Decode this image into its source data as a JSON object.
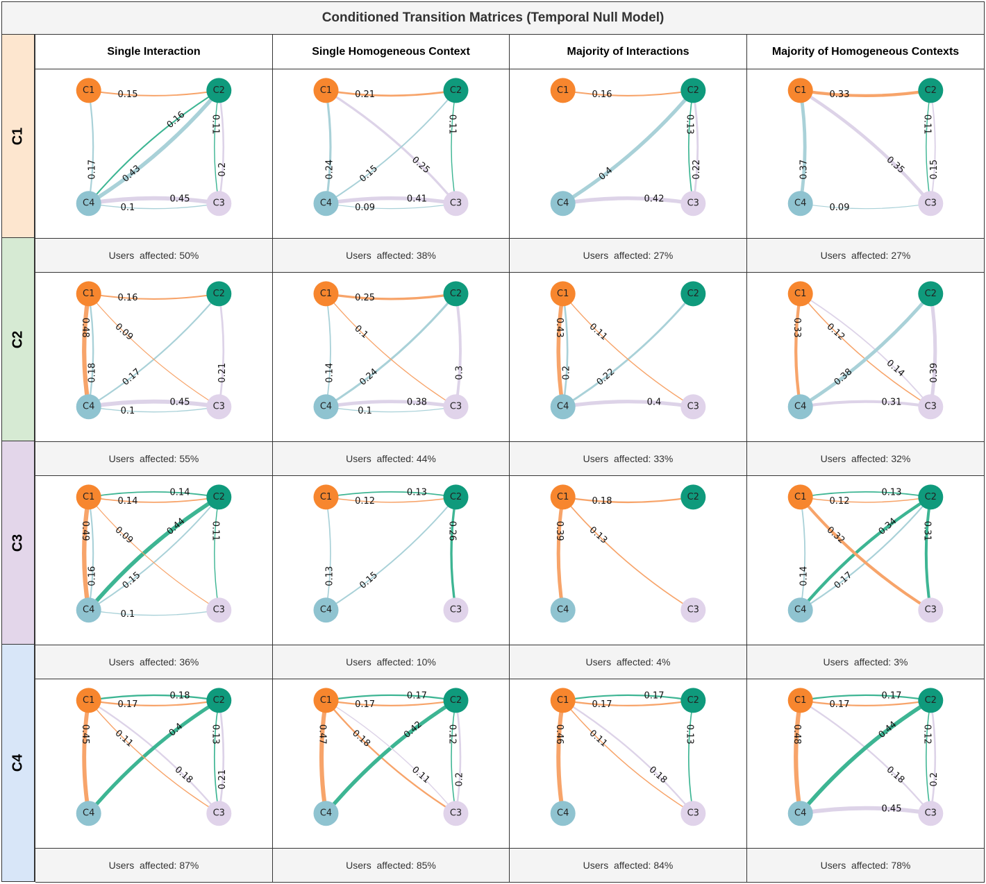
{
  "title": "Conditioned Transition Matrices (Temporal Null Model)",
  "columns": [
    "Single Interaction",
    "Single Homogeneous Context",
    "Majority of Interactions",
    "Majority of Homogeneous Contexts"
  ],
  "rows": [
    {
      "label": "C1",
      "color": "#fde6cf"
    },
    {
      "label": "C2",
      "color": "#d6ead3"
    },
    {
      "label": "C3",
      "color": "#e3d6ea"
    },
    {
      "label": "C4",
      "color": "#d8e6f8"
    }
  ],
  "affected_prefix": "Users  affected: ",
  "node_colors": {
    "C1": "#f7862e",
    "C2": "#0f9a7c",
    "C3": "#e0d3ea",
    "C4": "#8fc3d0"
  },
  "edge_colors": {
    "C1": "#f7a46a",
    "C2": "#3db593",
    "C3": "#ddd3e8",
    "C4": "#a9d1d8"
  },
  "node_labels": {
    "C1": "C1",
    "C2": "C2",
    "C3": "C3",
    "C4": "C4"
  },
  "panels": [
    [
      {
        "affected": "50%",
        "edges": [
          {
            "from": "C1",
            "to": "C2",
            "value": 0.15,
            "label": "0.15"
          },
          {
            "from": "C2",
            "to": "C4",
            "value": 0.16,
            "label": "0.16"
          },
          {
            "from": "C4",
            "to": "C2",
            "value": 0.43,
            "label": "0.43"
          },
          {
            "from": "C4",
            "to": "C1",
            "value": 0.17,
            "label": "0.17"
          },
          {
            "from": "C3",
            "to": "C2",
            "value": 0.2,
            "label": "0.2"
          },
          {
            "from": "C2",
            "to": "C3",
            "value": 0.11,
            "label": "0.11"
          },
          {
            "from": "C3",
            "to": "C4",
            "value": 0.45,
            "label": "0.45"
          },
          {
            "from": "C4",
            "to": "C3",
            "value": 0.1,
            "label": "0.1"
          }
        ]
      },
      {
        "affected": "38%",
        "edges": [
          {
            "from": "C1",
            "to": "C2",
            "value": 0.21,
            "label": "0.21"
          },
          {
            "from": "C4",
            "to": "C1",
            "value": 0.24,
            "label": "0.24"
          },
          {
            "from": "C3",
            "to": "C1",
            "value": 0.25,
            "label": "0.25"
          },
          {
            "from": "C4",
            "to": "C2",
            "value": 0.15,
            "label": "0.15"
          },
          {
            "from": "C2",
            "to": "C3",
            "value": 0.11,
            "label": "0.11"
          },
          {
            "from": "C3",
            "to": "C4",
            "value": 0.41,
            "label": "0.41"
          },
          {
            "from": "C4",
            "to": "C3",
            "value": 0.09,
            "label": "0.09"
          }
        ]
      },
      {
        "affected": "27%",
        "edges": [
          {
            "from": "C1",
            "to": "C2",
            "value": 0.16,
            "label": "0.16"
          },
          {
            "from": "C4",
            "to": "C2",
            "value": 0.4,
            "label": "0.4"
          },
          {
            "from": "C3",
            "to": "C2",
            "value": 0.22,
            "label": "0.22"
          },
          {
            "from": "C2",
            "to": "C3",
            "value": 0.13,
            "label": "0.13"
          },
          {
            "from": "C3",
            "to": "C4",
            "value": 0.42,
            "label": "0.42"
          }
        ]
      },
      {
        "affected": "27%",
        "edges": [
          {
            "from": "C1",
            "to": "C2",
            "value": 0.33,
            "label": "0.33"
          },
          {
            "from": "C4",
            "to": "C1",
            "value": 0.37,
            "label": "0.37"
          },
          {
            "from": "C3",
            "to": "C1",
            "value": 0.35,
            "label": "0.35"
          },
          {
            "from": "C3",
            "to": "C2",
            "value": 0.15,
            "label": "0.15"
          },
          {
            "from": "C2",
            "to": "C3",
            "value": 0.11,
            "label": "0.11"
          },
          {
            "from": "C4",
            "to": "C3",
            "value": 0.09,
            "label": "0.09"
          }
        ]
      }
    ],
    [
      {
        "affected": "55%",
        "edges": [
          {
            "from": "C1",
            "to": "C2",
            "value": 0.16,
            "label": "0.16"
          },
          {
            "from": "C4",
            "to": "C2",
            "value": 0.17,
            "label": "0.17"
          },
          {
            "from": "C1",
            "to": "C3",
            "value": 0.09,
            "label": "0.09"
          },
          {
            "from": "C4",
            "to": "C1",
            "value": 0.18,
            "label": "0.18"
          },
          {
            "from": "C1",
            "to": "C4",
            "value": 0.48,
            "label": "0.48"
          },
          {
            "from": "C3",
            "to": "C2",
            "value": 0.21,
            "label": "0.21"
          },
          {
            "from": "C3",
            "to": "C4",
            "value": 0.45,
            "label": "0.45"
          },
          {
            "from": "C4",
            "to": "C3",
            "value": 0.1,
            "label": "0.1"
          }
        ]
      },
      {
        "affected": "44%",
        "edges": [
          {
            "from": "C1",
            "to": "C2",
            "value": 0.25,
            "label": "0.25"
          },
          {
            "from": "C4",
            "to": "C2",
            "value": 0.24,
            "label": "0.24"
          },
          {
            "from": "C1",
            "to": "C3",
            "value": 0.1,
            "label": "0.1"
          },
          {
            "from": "C4",
            "to": "C1",
            "value": 0.14,
            "label": "0.14"
          },
          {
            "from": "C3",
            "to": "C2",
            "value": 0.3,
            "label": "0.3"
          },
          {
            "from": "C3",
            "to": "C4",
            "value": 0.38,
            "label": "0.38"
          },
          {
            "from": "C4",
            "to": "C3",
            "value": 0.1,
            "label": "0.1"
          }
        ]
      },
      {
        "affected": "33%",
        "edges": [
          {
            "from": "C4",
            "to": "C2",
            "value": 0.22,
            "label": "0.22"
          },
          {
            "from": "C1",
            "to": "C3",
            "value": 0.11,
            "label": "0.11"
          },
          {
            "from": "C4",
            "to": "C1",
            "value": 0.2,
            "label": "0.2"
          },
          {
            "from": "C1",
            "to": "C4",
            "value": 0.43,
            "label": "0.43"
          },
          {
            "from": "C3",
            "to": "C4",
            "value": 0.4,
            "label": "0.4"
          }
        ]
      },
      {
        "affected": "32%",
        "edges": [
          {
            "from": "C1",
            "to": "C4",
            "value": 0.33,
            "label": "0.33"
          },
          {
            "from": "C3",
            "to": "C1",
            "value": 0.14,
            "label": "0.14"
          },
          {
            "from": "C1",
            "to": "C3",
            "value": 0.12,
            "label": "0.12"
          },
          {
            "from": "C4",
            "to": "C2",
            "value": 0.38,
            "label": "0.38"
          },
          {
            "from": "C3",
            "to": "C2",
            "value": 0.39,
            "label": "0.39"
          },
          {
            "from": "C3",
            "to": "C4",
            "value": 0.31,
            "label": "0.31"
          }
        ]
      }
    ],
    [
      {
        "affected": "36%",
        "edges": [
          {
            "from": "C1",
            "to": "C2",
            "value": 0.14,
            "label": "0.14"
          },
          {
            "from": "C2",
            "to": "C1",
            "value": 0.14,
            "label": "0.14"
          },
          {
            "from": "C4",
            "to": "C1",
            "value": 0.16,
            "label": "0.16"
          },
          {
            "from": "C1",
            "to": "C4",
            "value": 0.49,
            "label": "0.49"
          },
          {
            "from": "C4",
            "to": "C2",
            "value": 0.15,
            "label": "0.15"
          },
          {
            "from": "C2",
            "to": "C4",
            "value": 0.44,
            "label": "0.44"
          },
          {
            "from": "C1",
            "to": "C3",
            "value": 0.09,
            "label": "0.09"
          },
          {
            "from": "C2",
            "to": "C3",
            "value": 0.11,
            "label": "0.11"
          },
          {
            "from": "C4",
            "to": "C3",
            "value": 0.1,
            "label": "0.1"
          }
        ]
      },
      {
        "affected": "10%",
        "edges": [
          {
            "from": "C1",
            "to": "C2",
            "value": 0.12,
            "label": "0.12"
          },
          {
            "from": "C2",
            "to": "C1",
            "value": 0.13,
            "label": "0.13"
          },
          {
            "from": "C4",
            "to": "C1",
            "value": 0.13,
            "label": "0.13"
          },
          {
            "from": "C4",
            "to": "C2",
            "value": 0.15,
            "label": "0.15"
          },
          {
            "from": "C2",
            "to": "C3",
            "value": 0.26,
            "label": "0.26"
          }
        ]
      },
      {
        "affected": "4%",
        "edges": [
          {
            "from": "C1",
            "to": "C2",
            "value": 0.18,
            "label": "0.18"
          },
          {
            "from": "C1",
            "to": "C4",
            "value": 0.39,
            "label": "0.39"
          },
          {
            "from": "C1",
            "to": "C3",
            "value": 0.13,
            "label": "0.13"
          }
        ]
      },
      {
        "affected": "3%",
        "edges": [
          {
            "from": "C1",
            "to": "C2",
            "value": 0.12,
            "label": "0.12"
          },
          {
            "from": "C2",
            "to": "C1",
            "value": 0.13,
            "label": "0.13"
          },
          {
            "from": "C4",
            "to": "C1",
            "value": 0.14,
            "label": "0.14"
          },
          {
            "from": "C4",
            "to": "C2",
            "value": 0.17,
            "label": "0.17"
          },
          {
            "from": "C2",
            "to": "C4",
            "value": 0.34,
            "label": "0.34"
          },
          {
            "from": "C1",
            "to": "C3",
            "value": 0.32,
            "label": "0.32"
          },
          {
            "from": "C2",
            "to": "C3",
            "value": 0.31,
            "label": "0.31"
          }
        ]
      }
    ],
    [
      {
        "affected": "87%",
        "edges": [
          {
            "from": "C1",
            "to": "C2",
            "value": 0.17,
            "label": "0.17"
          },
          {
            "from": "C2",
            "to": "C1",
            "value": 0.18,
            "label": "0.18"
          },
          {
            "from": "C1",
            "to": "C4",
            "value": 0.45,
            "label": "0.45"
          },
          {
            "from": "C3",
            "to": "C1",
            "value": 0.18,
            "label": "0.18"
          },
          {
            "from": "C2",
            "to": "C4",
            "value": 0.4,
            "label": "0.4"
          },
          {
            "from": "C1",
            "to": "C3",
            "value": 0.11,
            "label": "0.11"
          },
          {
            "from": "C3",
            "to": "C2",
            "value": 0.21,
            "label": "0.21"
          },
          {
            "from": "C2",
            "to": "C3",
            "value": 0.13,
            "label": "0.13"
          }
        ]
      },
      {
        "affected": "85%",
        "edges": [
          {
            "from": "C1",
            "to": "C2",
            "value": 0.17,
            "label": "0.17"
          },
          {
            "from": "C2",
            "to": "C1",
            "value": 0.17,
            "label": "0.17"
          },
          {
            "from": "C1",
            "to": "C4",
            "value": 0.47,
            "label": "0.47"
          },
          {
            "from": "C1",
            "to": "C3",
            "value": 0.18,
            "label": "0.18"
          },
          {
            "from": "C2",
            "to": "C4",
            "value": 0.42,
            "label": "0.42"
          },
          {
            "from": "C3",
            "to": "C1",
            "value": 0.11,
            "label": "0.11"
          },
          {
            "from": "C3",
            "to": "C2",
            "value": 0.2,
            "label": "0.2"
          },
          {
            "from": "C2",
            "to": "C3",
            "value": 0.12,
            "label": "0.12"
          }
        ]
      },
      {
        "affected": "84%",
        "edges": [
          {
            "from": "C1",
            "to": "C2",
            "value": 0.17,
            "label": "0.17"
          },
          {
            "from": "C2",
            "to": "C1",
            "value": 0.17,
            "label": "0.17"
          },
          {
            "from": "C1",
            "to": "C4",
            "value": 0.46,
            "label": "0.46"
          },
          {
            "from": "C3",
            "to": "C1",
            "value": 0.18,
            "label": "0.18"
          },
          {
            "from": "C1",
            "to": "C3",
            "value": 0.11,
            "label": "0.11"
          },
          {
            "from": "C2",
            "to": "C3",
            "value": 0.13,
            "label": "0.13"
          }
        ]
      },
      {
        "affected": "78%",
        "edges": [
          {
            "from": "C1",
            "to": "C2",
            "value": 0.17,
            "label": "0.17"
          },
          {
            "from": "C2",
            "to": "C1",
            "value": 0.17,
            "label": "0.17"
          },
          {
            "from": "C1",
            "to": "C4",
            "value": 0.48,
            "label": "0.48"
          },
          {
            "from": "C3",
            "to": "C1",
            "value": 0.18,
            "label": "0.18"
          },
          {
            "from": "C2",
            "to": "C4",
            "value": 0.44,
            "label": "0.44"
          },
          {
            "from": "C3",
            "to": "C2",
            "value": 0.2,
            "label": "0.2"
          },
          {
            "from": "C2",
            "to": "C3",
            "value": 0.12,
            "label": "0.12"
          },
          {
            "from": "C3",
            "to": "C4",
            "value": 0.45,
            "label": "0.45"
          }
        ]
      }
    ]
  ]
}
